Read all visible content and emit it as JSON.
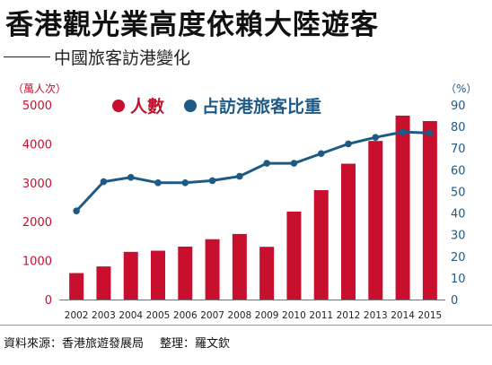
{
  "header": {
    "title": "香港觀光業高度依賴大陸遊客",
    "subtitle": "中國旅客訪港變化"
  },
  "axes": {
    "left_unit": "（萬人次）",
    "right_unit": "（%）"
  },
  "footer": {
    "source": "資料來源：香港旅遊發展局",
    "editor": "整理：羅文欽"
  },
  "colors": {
    "bar": "#c8102e",
    "line": "#1f5a85"
  },
  "chart_data": {
    "type": "bar",
    "categories": [
      "2002",
      "2003",
      "2004",
      "2005",
      "2006",
      "2007",
      "2008",
      "2009",
      "2010",
      "2011",
      "2012",
      "2013",
      "2014",
      "2015"
    ],
    "series": [
      {
        "name": "人數",
        "type": "bar",
        "axis": "left",
        "values": [
          680,
          850,
          1225,
          1255,
          1360,
          1550,
          1685,
          1355,
          2260,
          2810,
          3490,
          4075,
          4725,
          4585
        ]
      },
      {
        "name": "占訪港旅客比重",
        "type": "line",
        "axis": "right",
        "values": [
          41,
          54.5,
          56.5,
          54,
          54,
          55,
          57,
          63,
          63,
          67.5,
          72,
          75,
          77.5,
          77
        ]
      }
    ],
    "y_left": {
      "lim": [
        0,
        5000
      ],
      "ticks": [
        0,
        1000,
        2000,
        3000,
        4000,
        5000
      ]
    },
    "y_right": {
      "lim": [
        0,
        90
      ],
      "ticks": [
        0,
        10,
        20,
        30,
        40,
        50,
        60,
        70,
        80,
        90
      ]
    },
    "grid": false,
    "legend": "top-left"
  }
}
